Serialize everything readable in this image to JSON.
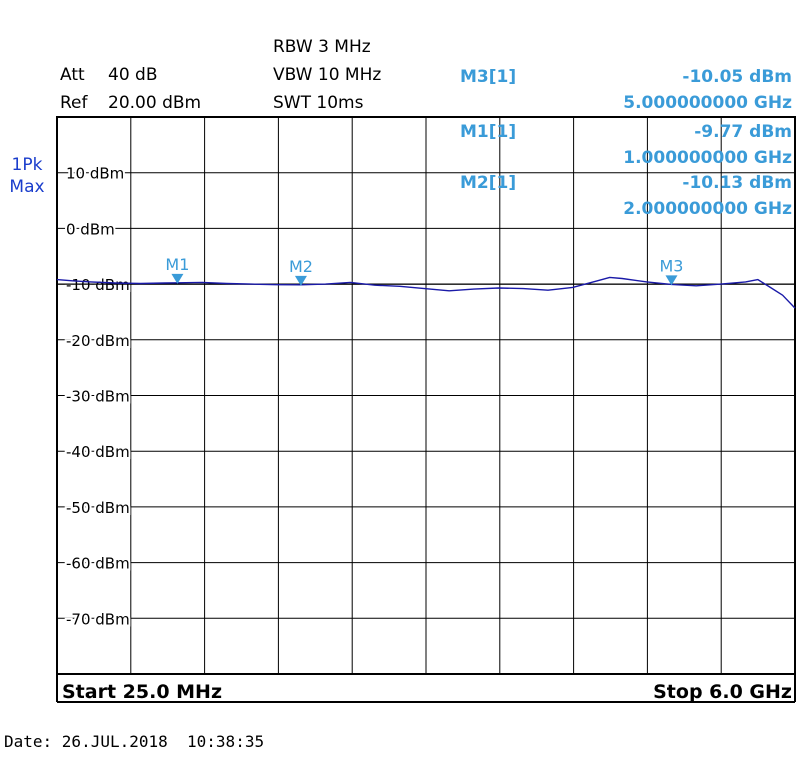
{
  "header": {
    "att_label": "Att",
    "att_value": "40 dB",
    "ref_label": "Ref",
    "ref_value": "20.00 dBm",
    "rbw": "RBW 3 MHz",
    "vbw": "VBW 10 MHz",
    "swt": "SWT 10ms"
  },
  "trace_label": {
    "line1": "1Pk",
    "line2": "Max"
  },
  "markers": [
    {
      "name": "M3[1]",
      "level": "-10.05 dBm",
      "freq": "5.000000000 GHz"
    },
    {
      "name": "M1[1]",
      "level": "-9.77 dBm",
      "freq": "1.000000000 GHz"
    },
    {
      "name": "M2[1]",
      "level": "-10.13 dBm",
      "freq": "2.000000000 GHz"
    }
  ],
  "footer": {
    "start": "Start 25.0 MHz",
    "stop": "Stop 6.0 GHz"
  },
  "date": "Date: 26.JUL.2018  10:38:35",
  "colors": {
    "trace": "#1a1aa8",
    "marker": "#3a9bd8",
    "grid": "#000000"
  },
  "chart_data": {
    "type": "line",
    "xlabel": "",
    "ylabel": "",
    "x_unit": "GHz",
    "y_unit": "dBm",
    "xlim": [
      0.025,
      6.0
    ],
    "ylim": [
      -80,
      20
    ],
    "y_ticks": [
      10,
      0,
      -10,
      -20,
      -30,
      -40,
      -50,
      -60,
      -70
    ],
    "y_tick_labels": [
      "10 dBm",
      "0 dBm",
      "-10 dBm",
      "-20 dBm",
      "-30 dBm",
      "-40 dBm",
      "-50 dBm",
      "-60 dBm",
      "-70 dBm"
    ],
    "grid": true,
    "reference_line_dbm": -10,
    "markers": [
      {
        "label": "M1",
        "x": 1.0,
        "y": -9.77
      },
      {
        "label": "M2",
        "x": 2.0,
        "y": -10.13
      },
      {
        "label": "M3",
        "x": 5.0,
        "y": -10.05
      }
    ],
    "series": [
      {
        "x": [
          0.025,
          0.15,
          0.3,
          0.5,
          0.7,
          0.9,
          1.0,
          1.2,
          1.4,
          1.6,
          1.8,
          2.0,
          2.2,
          2.4,
          2.6,
          2.8,
          3.0,
          3.2,
          3.4,
          3.6,
          3.8,
          4.0,
          4.2,
          4.4,
          4.5,
          4.6,
          4.8,
          5.0,
          5.2,
          5.4,
          5.6,
          5.7,
          5.8,
          5.9,
          6.0
        ],
        "y": [
          -9.2,
          -9.4,
          -9.6,
          -9.8,
          -9.9,
          -9.8,
          -9.77,
          -9.7,
          -9.9,
          -10.0,
          -10.1,
          -10.13,
          -10.0,
          -9.7,
          -10.2,
          -10.4,
          -10.8,
          -11.2,
          -10.9,
          -10.7,
          -10.8,
          -11.1,
          -10.6,
          -9.4,
          -8.8,
          -9.0,
          -9.6,
          -10.05,
          -10.3,
          -10.0,
          -9.6,
          -9.2,
          -10.6,
          -12.0,
          -14.3
        ]
      }
    ]
  }
}
